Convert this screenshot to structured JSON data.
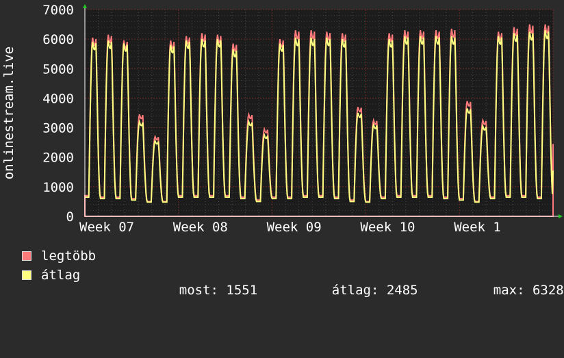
{
  "chart_data": {
    "type": "line",
    "ylabel": "onlinestream.live",
    "ylim": [
      0,
      7000
    ],
    "yticks": [
      0,
      1000,
      2000,
      3000,
      4000,
      5000,
      6000,
      7000
    ],
    "xticks": [
      "Week 07",
      "Week 08",
      "Week 09",
      "Week 10",
      "Week 1"
    ],
    "grid": true,
    "x_days_span": 35,
    "series": [
      {
        "name": "legtöbb",
        "color": "#ff7b7b",
        "daily_peaks": [
          6050,
          6150,
          5950,
          3450,
          2700,
          5950,
          6100,
          6200,
          6150,
          5850,
          3450,
          2950,
          6000,
          6300,
          6300,
          6250,
          6200,
          3700,
          3250,
          6200,
          6300,
          6300,
          6300,
          6350,
          3900,
          3250,
          6250,
          6400,
          6500,
          6500
        ],
        "daily_lows": [
          700,
          650,
          650,
          600,
          500,
          500,
          700,
          700,
          700,
          700,
          650,
          550,
          650,
          650,
          700,
          700,
          650,
          550,
          500,
          650,
          700,
          700,
          700,
          650,
          600,
          500,
          650,
          700,
          700,
          650
        ],
        "last_value": 2450
      },
      {
        "name": "átlag",
        "color": "#ffff80",
        "daily_peaks": [
          5900,
          5950,
          5850,
          3200,
          2550,
          5800,
          5950,
          6000,
          6000,
          5650,
          3200,
          2750,
          5850,
          6050,
          6050,
          6050,
          6000,
          3500,
          3100,
          6000,
          6100,
          6100,
          6100,
          6100,
          3650,
          3050,
          6100,
          6200,
          6250,
          6300
        ],
        "daily_lows": [
          650,
          600,
          600,
          550,
          480,
          480,
          650,
          650,
          650,
          650,
          600,
          500,
          600,
          600,
          650,
          650,
          600,
          500,
          480,
          600,
          650,
          650,
          650,
          600,
          550,
          480,
          600,
          650,
          650,
          600
        ],
        "last_value": 1551
      }
    ]
  },
  "legend": {
    "max_label": "legtöbb",
    "avg_label": "átlag",
    "stats": [
      {
        "key": "most:",
        "value": "1551"
      },
      {
        "key": "átlag:",
        "value": "2485"
      },
      {
        "key": "max:",
        "value": "6328"
      }
    ]
  },
  "colors": {
    "background": "#2b2b2b",
    "plot_background": "#1c1c1c",
    "grid_major": "#6e2a2a",
    "axis_arrow": "#22cc22",
    "max_series": "#ff7b7b",
    "avg_series": "#ffff80"
  }
}
